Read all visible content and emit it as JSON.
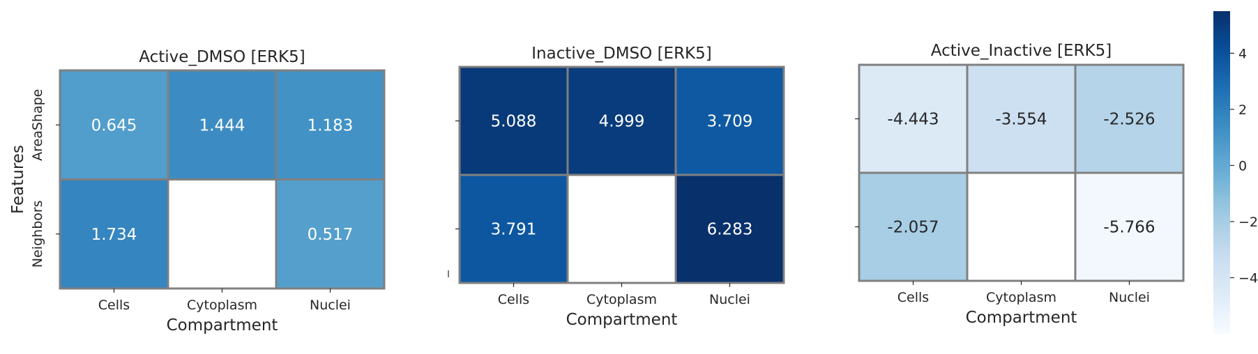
{
  "chart_data": [
    {
      "type": "heatmap",
      "title": "Active_DMSO [ERK5]",
      "xlabel": "Compartment",
      "ylabel": "Features",
      "x_categories": [
        "Cells",
        "Cytoplasm",
        "Nuclei"
      ],
      "y_categories": [
        "AreaShape",
        "Neighbors"
      ],
      "values": [
        [
          0.645,
          1.444,
          1.183
        ],
        [
          1.734,
          null,
          0.517
        ]
      ],
      "value_labels": [
        [
          "0.645",
          "1.444",
          "1.183"
        ],
        [
          "1.734",
          "",
          "0.517"
        ]
      ]
    },
    {
      "type": "heatmap",
      "title": "Inactive_DMSO [ERK5]",
      "xlabel": "Compartment",
      "ylabel": "",
      "x_categories": [
        "Cells",
        "Cytoplasm",
        "Nuclei"
      ],
      "y_categories": [
        "",
        ""
      ],
      "values": [
        [
          5.088,
          4.999,
          3.709
        ],
        [
          3.791,
          null,
          6.283
        ]
      ],
      "value_labels": [
        [
          "5.088",
          "4.999",
          "3.709"
        ],
        [
          "3.791",
          "",
          "6.283"
        ]
      ]
    },
    {
      "type": "heatmap",
      "title": "Active_Inactive [ERK5]",
      "xlabel": "Compartment",
      "ylabel": "",
      "x_categories": [
        "Cells",
        "Cytoplasm",
        "Nuclei"
      ],
      "y_categories": [
        "",
        ""
      ],
      "values": [
        [
          -4.443,
          -3.554,
          -2.526
        ],
        [
          -2.057,
          null,
          -5.766
        ]
      ],
      "value_labels": [
        [
          "-4.443",
          "-3.554",
          "-2.526"
        ],
        [
          "-2.057",
          "",
          "-5.766"
        ]
      ]
    }
  ],
  "colorbar": {
    "colormap": "Blues",
    "vmin": -6,
    "vmax": 5.5,
    "ticks": [
      4,
      2,
      0,
      -2,
      -4
    ],
    "tick_labels": [
      "4",
      "2",
      "0",
      "−2",
      "−4"
    ]
  },
  "colors": {
    "cell_border": "#808080",
    "text_light": "#ffffff",
    "text_dark": "#262626",
    "axis": "#262626"
  }
}
